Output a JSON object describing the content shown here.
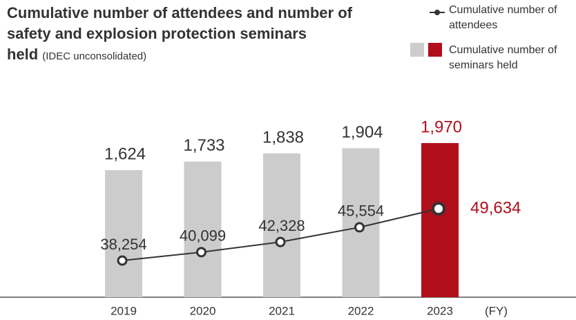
{
  "chart_data": {
    "type": "bar_line",
    "title": "Cumulative number of attendees and number of safety and explosion protection seminars held",
    "subtitle": "(IDEC unconsolidated)",
    "x_unit": "(FY)",
    "categories": [
      "2019",
      "2020",
      "2021",
      "2022",
      "2023"
    ],
    "highlight_color": "#b10f1b",
    "series": [
      {
        "name": "Cumulative number of attendees",
        "type": "line",
        "color": "#333333",
        "values": [
          38254,
          40099,
          42328,
          45554,
          49634
        ],
        "value_labels": [
          "38,254",
          "40,099",
          "42,328",
          "45,554",
          "49,634"
        ]
      },
      {
        "name": "Cumulative number of seminars held",
        "type": "bar",
        "color": "#cccccc",
        "values": [
          1624,
          1733,
          1838,
          1904,
          1970
        ],
        "value_labels": [
          "1,624",
          "1,733",
          "1,838",
          "1,904",
          "1,970"
        ]
      }
    ]
  }
}
